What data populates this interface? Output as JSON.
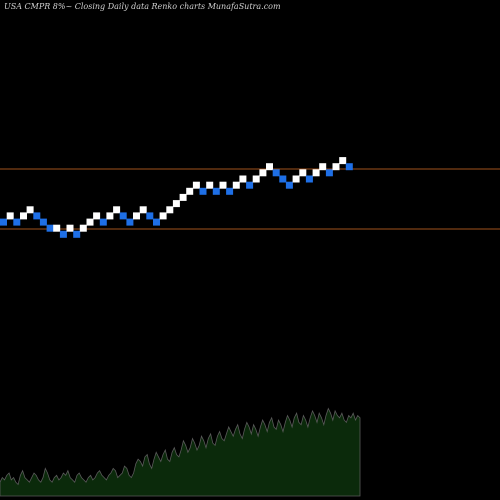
{
  "title": "USA CMPR 8%~  Closing Daily data  Renko  charts MunafaSutra.com",
  "colors": {
    "background": "#000000",
    "up_brick": "#ffffff",
    "down_brick": "#1e6fe6",
    "level_line": "#a0521c",
    "volume_fill": "#0b2a0b",
    "volume_stroke": "#5a5a5a",
    "label_text": "#d0d0d0"
  },
  "chart_data": {
    "type": "renko",
    "title": "USA CMPR 8%~  Closing Daily data  Renko  charts MunafaSutra.com",
    "bricks": [
      {
        "level": 3,
        "dir": "down"
      },
      {
        "level": 4,
        "dir": "up"
      },
      {
        "level": 3,
        "dir": "down"
      },
      {
        "level": 4,
        "dir": "up"
      },
      {
        "level": 5,
        "dir": "up"
      },
      {
        "level": 4,
        "dir": "down"
      },
      {
        "level": 3,
        "dir": "down"
      },
      {
        "level": 2,
        "dir": "down"
      },
      {
        "level": 2,
        "dir": "up"
      },
      {
        "level": 1,
        "dir": "down"
      },
      {
        "level": 2,
        "dir": "up"
      },
      {
        "level": 1,
        "dir": "down"
      },
      {
        "level": 2,
        "dir": "up"
      },
      {
        "level": 3,
        "dir": "up"
      },
      {
        "level": 4,
        "dir": "up"
      },
      {
        "level": 3,
        "dir": "down"
      },
      {
        "level": 4,
        "dir": "up"
      },
      {
        "level": 5,
        "dir": "up"
      },
      {
        "level": 4,
        "dir": "down"
      },
      {
        "level": 3,
        "dir": "down"
      },
      {
        "level": 4,
        "dir": "up"
      },
      {
        "level": 5,
        "dir": "up"
      },
      {
        "level": 4,
        "dir": "down"
      },
      {
        "level": 3,
        "dir": "down"
      },
      {
        "level": 4,
        "dir": "up"
      },
      {
        "level": 5,
        "dir": "up"
      },
      {
        "level": 6,
        "dir": "up"
      },
      {
        "level": 7,
        "dir": "up"
      },
      {
        "level": 8,
        "dir": "up"
      },
      {
        "level": 9,
        "dir": "up"
      },
      {
        "level": 8,
        "dir": "down"
      },
      {
        "level": 9,
        "dir": "up"
      },
      {
        "level": 8,
        "dir": "down"
      },
      {
        "level": 9,
        "dir": "up"
      },
      {
        "level": 8,
        "dir": "down"
      },
      {
        "level": 9,
        "dir": "up"
      },
      {
        "level": 10,
        "dir": "up"
      },
      {
        "level": 9,
        "dir": "down"
      },
      {
        "level": 10,
        "dir": "up"
      },
      {
        "level": 11,
        "dir": "up"
      },
      {
        "level": 12,
        "dir": "up"
      },
      {
        "level": 11,
        "dir": "down"
      },
      {
        "level": 10,
        "dir": "down"
      },
      {
        "level": 9,
        "dir": "down"
      },
      {
        "level": 10,
        "dir": "up"
      },
      {
        "level": 11,
        "dir": "up"
      },
      {
        "level": 10,
        "dir": "down"
      },
      {
        "level": 11,
        "dir": "up"
      },
      {
        "level": 12,
        "dir": "up"
      },
      {
        "level": 11,
        "dir": "down"
      },
      {
        "level": 12,
        "dir": "up"
      },
      {
        "level": 13,
        "dir": "up"
      },
      {
        "level": 12,
        "dir": "down"
      }
    ],
    "level_lines": [
      12,
      0
    ],
    "volume": [
      6,
      8,
      7,
      9,
      10,
      7,
      8,
      6,
      5,
      9,
      11,
      8,
      7,
      6,
      8,
      10,
      9,
      7,
      6,
      8,
      12,
      10,
      7,
      6,
      8,
      9,
      7,
      8,
      10,
      9,
      11,
      8,
      7,
      6,
      9,
      10,
      8,
      7,
      6,
      8,
      9,
      7,
      8,
      10,
      11,
      9,
      8,
      7,
      9,
      10,
      12,
      11,
      8,
      9,
      10,
      13,
      12,
      9,
      8,
      10,
      14,
      16,
      15,
      13,
      17,
      18,
      14,
      12,
      16,
      19,
      17,
      15,
      18,
      20,
      16,
      15,
      19,
      21,
      18,
      17,
      20,
      24,
      22,
      19,
      21,
      25,
      23,
      20,
      22,
      26,
      24,
      21,
      25,
      27,
      23,
      22,
      26,
      28,
      25,
      24,
      27,
      30,
      28,
      26,
      29,
      31,
      27,
      25,
      29,
      32,
      30,
      27,
      31,
      29,
      26,
      30,
      33,
      31,
      28,
      32,
      34,
      30,
      29,
      33,
      31,
      28,
      32,
      35,
      33,
      30,
      34,
      36,
      32,
      31,
      35,
      33,
      30,
      34,
      37,
      35,
      32,
      36,
      34,
      31,
      35,
      38,
      36,
      33,
      37,
      35,
      34,
      36,
      33,
      32,
      35,
      34,
      36,
      33,
      35,
      34
    ]
  }
}
